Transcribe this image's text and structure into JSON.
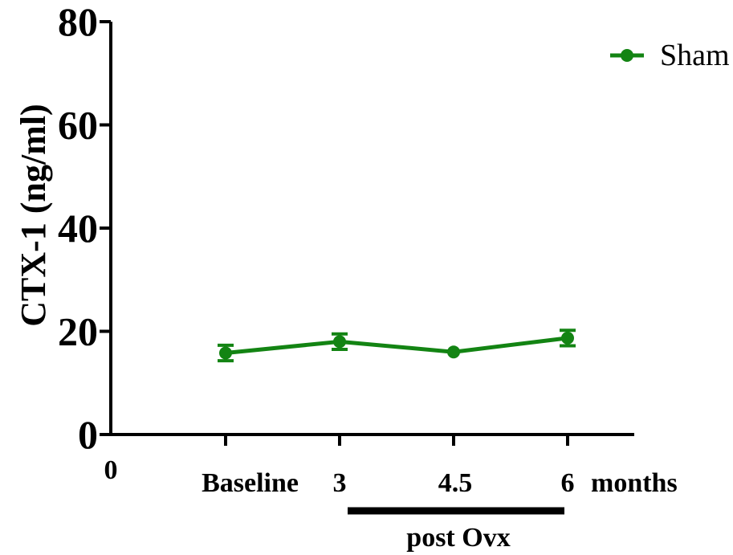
{
  "chart_data": {
    "type": "line",
    "title": "",
    "ylabel": "CTX-1 (ng/ml)",
    "xlabel": "",
    "ylim": [
      0,
      80
    ],
    "yticks": [
      0,
      20,
      40,
      60,
      80
    ],
    "x_origin_label": "0",
    "x_unit_label": "months",
    "grid": false,
    "legend_position": "top-right",
    "categories": [
      "Baseline",
      "3",
      "4.5",
      "6"
    ],
    "series": [
      {
        "name": "Sham",
        "color": "#138413",
        "marker": "circle",
        "values": [
          15.8,
          18.0,
          16.0,
          18.7
        ],
        "error": [
          1.5,
          1.5,
          0.5,
          1.5
        ]
      }
    ],
    "annotation": {
      "text": "post Ovx",
      "spans": [
        "3",
        "6"
      ]
    }
  }
}
